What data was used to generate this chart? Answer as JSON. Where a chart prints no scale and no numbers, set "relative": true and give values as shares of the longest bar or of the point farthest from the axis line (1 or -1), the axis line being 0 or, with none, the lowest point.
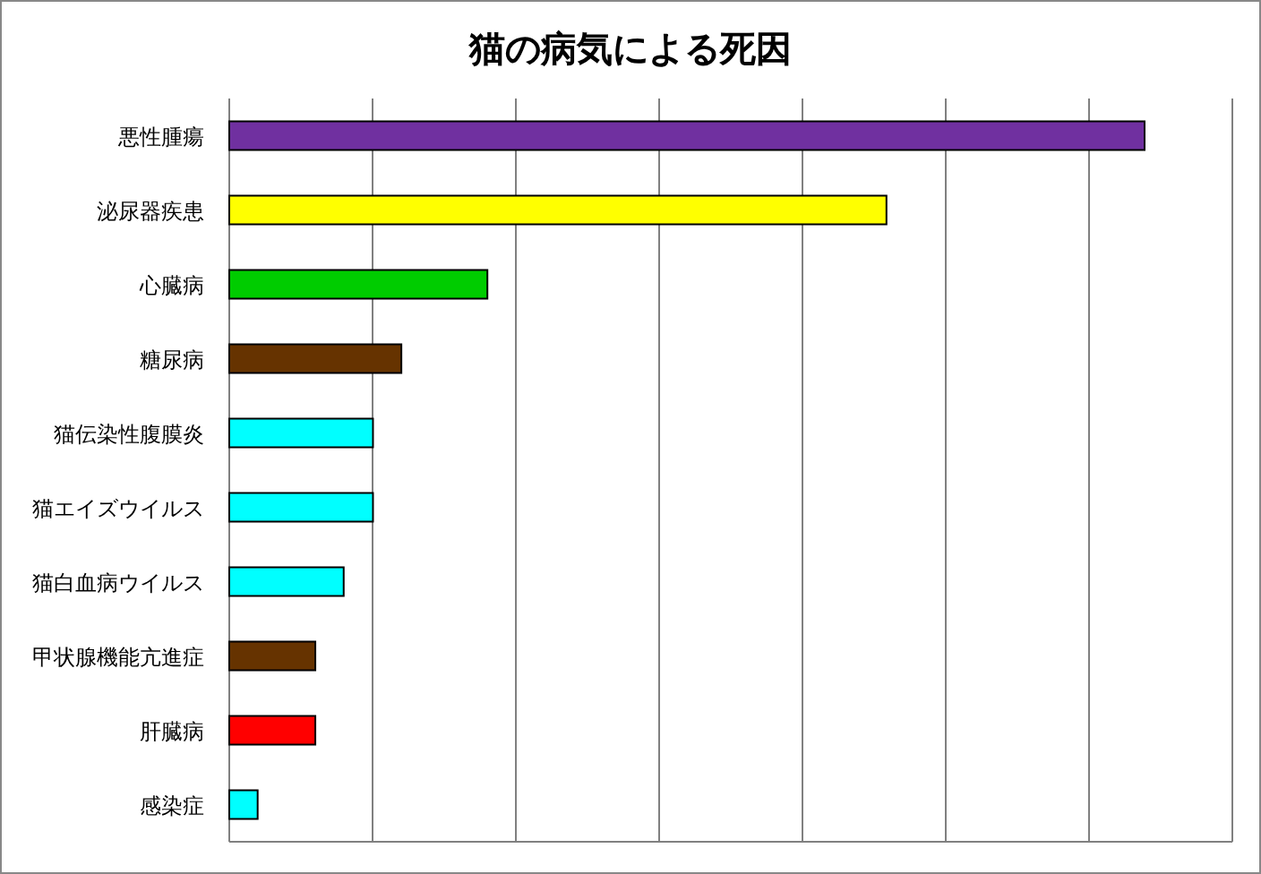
{
  "chart_data": {
    "type": "bar",
    "orientation": "horizontal",
    "relative": true,
    "title": "猫の病気による死因",
    "grid": "x",
    "categories": [
      "悪性腫瘍",
      "泌尿器疾患",
      "心臓病",
      "糖尿病",
      "猫伝染性腹膜炎",
      "猫エイズウイルス",
      "猫白血病ウイルス",
      "甲状腺機能亢進症",
      "肝臓病",
      "感染症"
    ],
    "values": [
      1,
      0.718,
      0.282,
      0.188,
      0.157,
      0.157,
      0.125,
      0.094,
      0.094,
      0.031
    ],
    "colors": [
      "#7030a0",
      "#ffff00",
      "#00cc00",
      "#663300",
      "#00ffff",
      "#00ffff",
      "#00ffff",
      "#663300",
      "#ff0000",
      "#00ffff"
    ]
  }
}
